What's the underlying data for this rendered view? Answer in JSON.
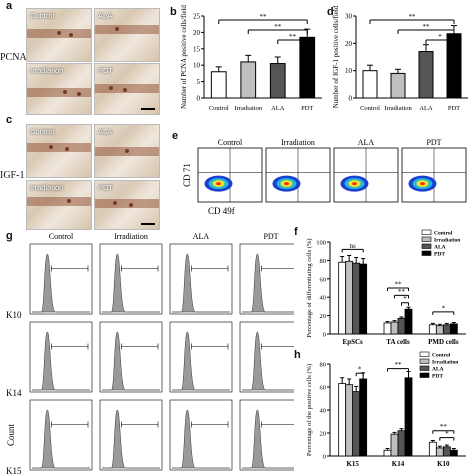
{
  "panel_letters": {
    "a": "a",
    "b": "b",
    "c": "c",
    "d": "d",
    "e": "e",
    "f": "f",
    "g": "g",
    "h": "h"
  },
  "row_labels": {
    "pcna": "PCNA",
    "igf": "IGF-1"
  },
  "tiles": {
    "a": [
      "Control",
      "ALA",
      "Irradiation",
      "PDT"
    ],
    "c": [
      "Control",
      "ALA",
      "Irradiation",
      "PDT"
    ]
  },
  "colors": {
    "black": "#000000",
    "dark_gray": "#555555",
    "light_gray": "#bfbfbf",
    "white": "#ffffff"
  },
  "sig": "**",
  "sig_single": "*",
  "ns": "ns",
  "chart_data": [
    {
      "id": "b",
      "type": "bar",
      "ylabel": "Number of PCNA positive cells/field",
      "categories": [
        "Control",
        "Irradiation",
        "ALA",
        "PDT"
      ],
      "values": [
        8,
        11,
        10.5,
        18.5
      ],
      "errors": [
        1.5,
        2,
        2,
        2.5
      ],
      "colors": [
        "#ffffff",
        "#bfbfbf",
        "#555555",
        "#000000"
      ],
      "ylim": [
        0,
        25
      ],
      "yticks": [
        0,
        5,
        10,
        15,
        20,
        25
      ],
      "annotations": [
        [
          "Control",
          "PDT",
          "**"
        ],
        [
          "Irradiation",
          "PDT",
          "**"
        ],
        [
          "ALA",
          "PDT",
          "**"
        ]
      ]
    },
    {
      "id": "d",
      "type": "bar",
      "ylabel": "Number of IGF-1 positive cells/field",
      "categories": [
        "Control",
        "Irradiation",
        "ALA",
        "PDT"
      ],
      "values": [
        10,
        9,
        17,
        23.5
      ],
      "errors": [
        2,
        1.5,
        2.5,
        3
      ],
      "colors": [
        "#ffffff",
        "#bfbfbf",
        "#555555",
        "#000000"
      ],
      "ylim": [
        0,
        30
      ],
      "yticks": [
        0,
        10,
        20,
        30
      ],
      "annotations": [
        [
          "Control",
          "PDT",
          "**"
        ],
        [
          "Irradiation",
          "PDT",
          "**"
        ],
        [
          "ALA",
          "PDT",
          "*"
        ]
      ]
    },
    {
      "id": "e",
      "type": "scatter",
      "title_labels": [
        "Control",
        "Irradiation",
        "ALA",
        "PDT"
      ],
      "xlabel": "CD 49f",
      "ylabel": "CD 71"
    },
    {
      "id": "f",
      "type": "bar",
      "ylabel": "Percentage of differentiating cells (%)",
      "categories": [
        "EpSCs",
        "TA cells",
        "PMD cells"
      ],
      "legend": [
        "Control",
        "Irradiation",
        "ALA",
        "PDT"
      ],
      "series": [
        {
          "name": "Control",
          "values": [
            78,
            12,
            10
          ]
        },
        {
          "name": "Irradiation",
          "values": [
            79,
            13,
            9
          ]
        },
        {
          "name": "ALA",
          "values": [
            77,
            17,
            10
          ]
        },
        {
          "name": "PDT",
          "values": [
            76,
            27,
            11
          ]
        }
      ],
      "colors": [
        "#ffffff",
        "#bfbfbf",
        "#555555",
        "#000000"
      ],
      "ylim": [
        0,
        100
      ],
      "yticks": [
        0,
        20,
        40,
        60,
        80,
        100
      ]
    },
    {
      "id": "g",
      "type": "histogram",
      "columns": [
        "Control",
        "Irradiation",
        "ALA",
        "PDT"
      ],
      "rows": [
        "K10",
        "K14",
        "K15"
      ],
      "ylabel": "Count"
    },
    {
      "id": "h",
      "type": "bar",
      "ylabel": "Percentage of the positive cells (%)",
      "categories": [
        "K15",
        "K14",
        "K10"
      ],
      "legend": [
        "Control",
        "Irradiation",
        "ALA",
        "PDT"
      ],
      "series": [
        {
          "name": "Control",
          "values": [
            63,
            5,
            12
          ]
        },
        {
          "name": "Irradiation",
          "values": [
            62,
            19,
            7
          ]
        },
        {
          "name": "ALA",
          "values": [
            56,
            22,
            8
          ]
        },
        {
          "name": "PDT",
          "values": [
            67,
            68,
            5
          ]
        }
      ],
      "colors": [
        "#ffffff",
        "#bfbfbf",
        "#555555",
        "#000000"
      ],
      "ylim": [
        0,
        80
      ],
      "yticks": [
        0,
        20,
        40,
        60,
        80
      ]
    }
  ]
}
